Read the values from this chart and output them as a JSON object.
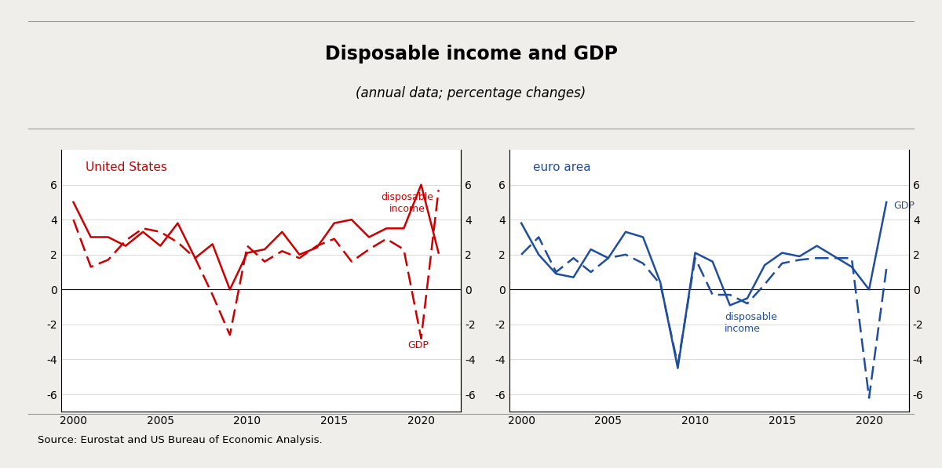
{
  "title": "Disposable income and GDP",
  "subtitle": "(annual data; percentage changes)",
  "source": "Source: Eurostat and US Bureau of Economic Analysis.",
  "us": {
    "label": "United States",
    "color": "#cc0000",
    "years": [
      2000,
      2001,
      2002,
      2003,
      2004,
      2005,
      2006,
      2007,
      2008,
      2009,
      2010,
      2011,
      2012,
      2013,
      2014,
      2015,
      2016,
      2017,
      2018,
      2019,
      2020,
      2021
    ],
    "disposable_income": [
      5.0,
      3.0,
      3.0,
      2.5,
      3.3,
      2.5,
      3.8,
      1.8,
      2.6,
      0.0,
      2.1,
      2.3,
      3.3,
      2.0,
      2.4,
      3.8,
      4.0,
      3.0,
      3.5,
      3.5,
      6.0,
      2.1
    ],
    "gdp": [
      4.0,
      1.3,
      1.7,
      2.8,
      3.5,
      3.3,
      2.7,
      1.8,
      -0.3,
      -2.6,
      2.5,
      1.6,
      2.2,
      1.8,
      2.5,
      2.9,
      1.6,
      2.3,
      2.9,
      2.3,
      -2.8,
      5.7
    ]
  },
  "ea": {
    "label": "euro area",
    "color": "#1f4e9f",
    "years": [
      2000,
      2001,
      2002,
      2003,
      2004,
      2005,
      2006,
      2007,
      2008,
      2009,
      2010,
      2011,
      2012,
      2013,
      2014,
      2015,
      2016,
      2017,
      2018,
      2019,
      2020,
      2021
    ],
    "disposable_income": [
      2.0,
      3.0,
      1.0,
      1.8,
      1.0,
      1.8,
      2.0,
      1.5,
      0.3,
      -4.3,
      1.8,
      -0.3,
      -0.3,
      -0.8,
      0.3,
      1.5,
      1.7,
      1.8,
      1.8,
      1.8,
      -6.2,
      1.2
    ],
    "gdp": [
      3.8,
      2.0,
      0.9,
      0.7,
      2.3,
      1.8,
      3.3,
      3.0,
      0.4,
      -4.5,
      2.1,
      1.6,
      -0.9,
      -0.5,
      1.4,
      2.1,
      1.9,
      2.5,
      1.9,
      1.3,
      0.0,
      5.0
    ]
  },
  "ylim": [
    -7.0,
    8.0
  ],
  "yticks": [
    -6,
    -4,
    -2,
    0,
    2,
    4,
    6
  ],
  "bg_color": "#f0eeea",
  "plot_bg": "#ffffff",
  "title_fontsize": 17,
  "subtitle_fontsize": 12,
  "tick_fontsize": 10,
  "annotation_fontsize": 9,
  "label_fontsize": 11,
  "source_fontsize": 9.5
}
